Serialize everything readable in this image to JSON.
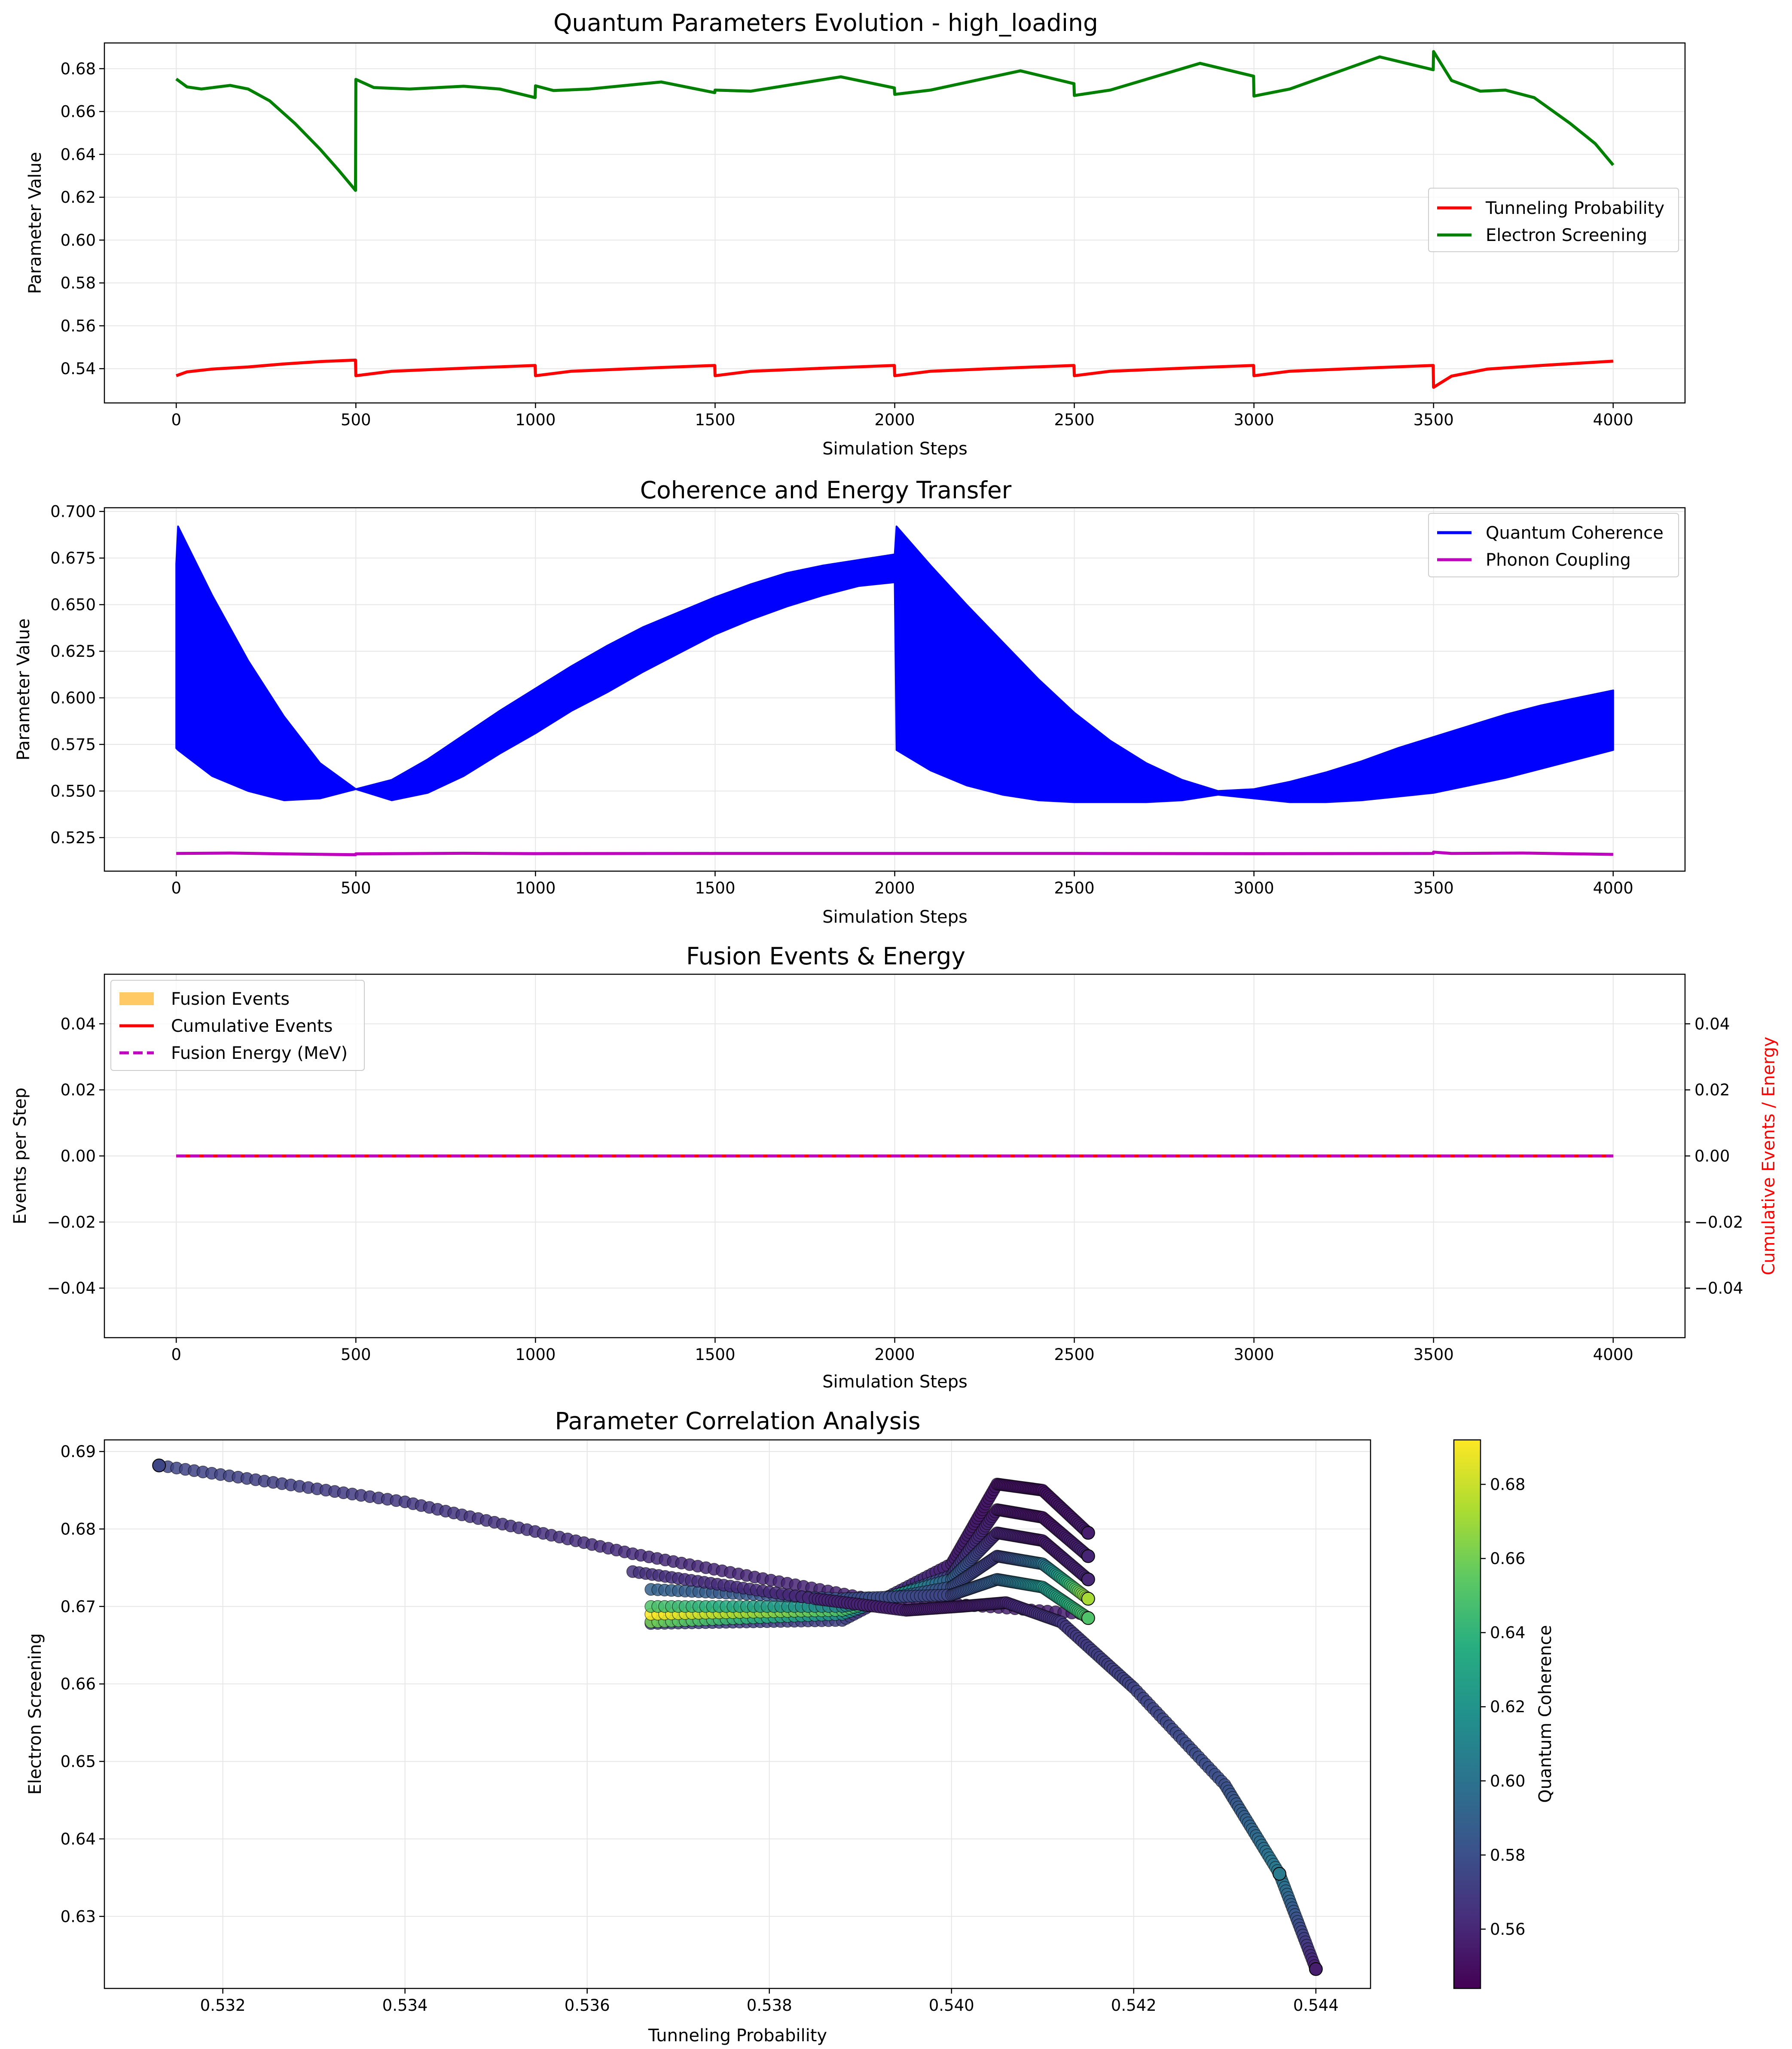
{
  "chart_data": [
    {
      "type": "line",
      "title": "Quantum Parameters Evolution - high_loading",
      "xlabel": "Simulation Steps",
      "ylabel": "Parameter Value",
      "xlim": [
        -200,
        4200
      ],
      "ylim": [
        0.524,
        0.692
      ],
      "xticks": [
        0,
        500,
        1000,
        1500,
        2000,
        2500,
        3000,
        3500,
        4000
      ],
      "yticks": [
        0.54,
        0.56,
        0.58,
        0.6,
        0.62,
        0.64,
        0.66,
        0.68
      ],
      "ytick_labels": [
        "0.54",
        "0.56",
        "0.58",
        "0.60",
        "0.62",
        "0.64",
        "0.66",
        "0.68"
      ],
      "grid": true,
      "legend_position": "center-right",
      "series": [
        {
          "name": "Tunneling Probability",
          "color": "#ff0000",
          "x": [
            0,
            30,
            100,
            200,
            300,
            400,
            499,
            500,
            600,
            800,
            999,
            1000,
            1100,
            1300,
            1499,
            1500,
            1600,
            1800,
            1999,
            2000,
            2100,
            2300,
            2499,
            2500,
            2600,
            2800,
            2999,
            3000,
            3100,
            3300,
            3499,
            3500,
            3550,
            3650,
            3800,
            4000
          ],
          "y": [
            0.5367,
            0.5385,
            0.5398,
            0.5408,
            0.5422,
            0.5433,
            0.544,
            0.5367,
            0.5388,
            0.5402,
            0.5415,
            0.5367,
            0.5388,
            0.5402,
            0.5415,
            0.5367,
            0.5388,
            0.5402,
            0.5415,
            0.5367,
            0.5388,
            0.5402,
            0.5415,
            0.5367,
            0.5388,
            0.5402,
            0.5415,
            0.5367,
            0.5388,
            0.5402,
            0.5415,
            0.5313,
            0.5365,
            0.5398,
            0.5415,
            0.5435
          ]
        },
        {
          "name": "Electron Screening",
          "color": "#008000",
          "x": [
            0,
            30,
            70,
            150,
            200,
            260,
            330,
            400,
            450,
            499,
            500,
            550,
            650,
            800,
            900,
            999,
            1000,
            1050,
            1150,
            1350,
            1499,
            1500,
            1600,
            1850,
            1999,
            2000,
            2100,
            2350,
            2499,
            2500,
            2600,
            2850,
            2999,
            3000,
            3100,
            3350,
            3499,
            3500,
            3550,
            3630,
            3700,
            3780,
            3880,
            3950,
            4000
          ],
          "y": [
            0.6752,
            0.6715,
            0.6705,
            0.6722,
            0.6705,
            0.665,
            0.6545,
            0.6425,
            0.633,
            0.6232,
            0.675,
            0.6712,
            0.6705,
            0.6718,
            0.6705,
            0.6665,
            0.672,
            0.6698,
            0.6705,
            0.6738,
            0.6688,
            0.67,
            0.6695,
            0.6762,
            0.671,
            0.668,
            0.67,
            0.679,
            0.673,
            0.6675,
            0.67,
            0.6825,
            0.6765,
            0.6672,
            0.6705,
            0.6855,
            0.6795,
            0.688,
            0.6745,
            0.6695,
            0.67,
            0.6665,
            0.6545,
            0.645,
            0.635
          ]
        }
      ]
    },
    {
      "type": "area",
      "title": "Coherence and Energy Transfer",
      "xlabel": "Simulation Steps",
      "ylabel": "Parameter Value",
      "xlim": [
        -200,
        4200
      ],
      "ylim": [
        0.507,
        0.702
      ],
      "xticks": [
        0,
        500,
        1000,
        1500,
        2000,
        2500,
        3000,
        3500,
        4000
      ],
      "yticks": [
        0.525,
        0.55,
        0.575,
        0.6,
        0.625,
        0.65,
        0.675,
        0.7
      ],
      "ytick_labels": [
        "0.525",
        "0.550",
        "0.575",
        "0.600",
        "0.625",
        "0.650",
        "0.675",
        "0.700"
      ],
      "grid": true,
      "legend_position": "top-right",
      "series": [
        {
          "name": "Quantum Coherence",
          "color": "#0000ff",
          "x": [
            0,
            5,
            100,
            200,
            300,
            400,
            500,
            600,
            700,
            800,
            900,
            1000,
            1100,
            1200,
            1300,
            1400,
            1500,
            1600,
            1700,
            1800,
            1900,
            2000,
            2005,
            2100,
            2200,
            2300,
            2400,
            2500,
            2600,
            2700,
            2800,
            2900,
            3000,
            3100,
            3200,
            3300,
            3400,
            3500,
            3600,
            3700,
            3800,
            3900,
            4000
          ],
          "upper": [
            0.672,
            0.692,
            0.655,
            0.62,
            0.59,
            0.565,
            0.551,
            0.556,
            0.567,
            0.58,
            0.593,
            0.605,
            0.617,
            0.628,
            0.638,
            0.646,
            0.654,
            0.661,
            0.667,
            0.671,
            0.674,
            0.677,
            0.692,
            0.671,
            0.65,
            0.63,
            0.61,
            0.592,
            0.577,
            0.565,
            0.556,
            0.55,
            0.551,
            0.555,
            0.56,
            0.566,
            0.573,
            0.579,
            0.585,
            0.591,
            0.596,
            0.6,
            0.604
          ],
          "lower": [
            0.573,
            0.572,
            0.558,
            0.55,
            0.545,
            0.546,
            0.551,
            0.545,
            0.549,
            0.558,
            0.57,
            0.581,
            0.593,
            0.603,
            0.614,
            0.624,
            0.634,
            0.642,
            0.649,
            0.655,
            0.66,
            0.662,
            0.572,
            0.561,
            0.553,
            0.548,
            0.545,
            0.544,
            0.544,
            0.544,
            0.545,
            0.548,
            0.546,
            0.544,
            0.544,
            0.545,
            0.547,
            0.549,
            0.553,
            0.557,
            0.562,
            0.567,
            0.572
          ]
        },
        {
          "name": "Phonon Coupling",
          "color": "#bf00bf",
          "x": [
            0,
            150,
            300,
            499,
            500,
            800,
            1000,
            1500,
            2000,
            2500,
            3000,
            3499,
            3500,
            3550,
            3750,
            4000
          ],
          "y": [
            0.5165,
            0.5167,
            0.5163,
            0.5158,
            0.5163,
            0.5166,
            0.5164,
            0.5165,
            0.5165,
            0.5165,
            0.5164,
            0.5165,
            0.5172,
            0.5165,
            0.5167,
            0.516
          ]
        }
      ]
    },
    {
      "type": "line",
      "title": "Fusion Events & Energy",
      "xlabel": "Simulation Steps",
      "ylabel": "Events per Step",
      "ylabel_right": "Cumulative Events / Energy",
      "ylabel_right_color": "#ff0000",
      "xlim": [
        -200,
        4200
      ],
      "ylim": [
        -0.055,
        0.055
      ],
      "ylim_right": [
        -0.055,
        0.055
      ],
      "xticks": [
        0,
        500,
        1000,
        1500,
        2000,
        2500,
        3000,
        3500,
        4000
      ],
      "yticks": [
        -0.04,
        -0.02,
        0.0,
        0.02,
        0.04
      ],
      "ytick_labels": [
        "−0.04",
        "−0.02",
        "0.00",
        "0.02",
        "0.04"
      ],
      "grid": true,
      "legend_position": "top-left",
      "series": [
        {
          "name": "Fusion Events",
          "color": "#ffa500",
          "style": "bar",
          "x": [
            0,
            4000
          ],
          "y": [
            0,
            0
          ]
        },
        {
          "name": "Cumulative Events",
          "color": "#ff0000",
          "style": "solid",
          "x": [
            0,
            4000
          ],
          "y": [
            0,
            0
          ]
        },
        {
          "name": "Fusion Energy (MeV)",
          "color": "#bf00bf",
          "style": "dashed",
          "x": [
            0,
            4000
          ],
          "y": [
            0,
            0
          ]
        }
      ]
    },
    {
      "type": "scatter",
      "title": "Parameter Correlation Analysis",
      "xlabel": "Tunneling Probability",
      "ylabel": "Electron Screening",
      "xlim": [
        0.5307,
        0.5446
      ],
      "ylim": [
        0.6207,
        0.6915
      ],
      "xticks": [
        0.532,
        0.534,
        0.536,
        0.538,
        0.54,
        0.542,
        0.544
      ],
      "xtick_labels": [
        "0.532",
        "0.534",
        "0.536",
        "0.538",
        "0.540",
        "0.542",
        "0.544"
      ],
      "yticks": [
        0.63,
        0.64,
        0.65,
        0.66,
        0.67,
        0.68,
        0.69
      ],
      "ytick_labels": [
        "0.63",
        "0.64",
        "0.65",
        "0.66",
        "0.67",
        "0.68",
        "0.69"
      ],
      "grid": true,
      "colorbar": {
        "label": "Quantum Coherence",
        "colormap": "viridis",
        "range": [
          0.544,
          0.692
        ],
        "ticks": [
          0.56,
          0.58,
          0.6,
          0.62,
          0.64,
          0.66,
          0.68
        ],
        "tick_labels": [
          "0.56",
          "0.58",
          "0.60",
          "0.62",
          "0.64",
          "0.66",
          "0.68"
        ]
      },
      "curves": [
        {
          "x": [
            0.5313,
            0.534,
            0.5365,
            0.539,
            0.5415
          ],
          "y": [
            0.6882,
            0.6835,
            0.6768,
            0.6712,
            0.669
          ],
          "c": [
            0.575,
            0.568,
            0.562,
            0.558,
            0.556
          ]
        },
        {
          "x": [
            0.5367,
            0.5388,
            0.54,
            0.5405,
            0.541,
            0.5415
          ],
          "y": [
            0.6678,
            0.6682,
            0.6755,
            0.6858,
            0.685,
            0.6795
          ],
          "c": [
            0.573,
            0.572,
            0.558,
            0.552,
            0.551,
            0.556
          ]
        },
        {
          "x": [
            0.5367,
            0.5388,
            0.54,
            0.5405,
            0.541,
            0.5415
          ],
          "y": [
            0.668,
            0.669,
            0.674,
            0.6825,
            0.6815,
            0.6765
          ],
          "c": [
            0.66,
            0.62,
            0.57,
            0.555,
            0.552,
            0.559
          ]
        },
        {
          "x": [
            0.5367,
            0.5388,
            0.54,
            0.5405,
            0.541,
            0.5415
          ],
          "y": [
            0.669,
            0.6695,
            0.6735,
            0.6795,
            0.6785,
            0.6735
          ],
          "c": [
            0.692,
            0.65,
            0.59,
            0.56,
            0.555,
            0.56
          ]
        },
        {
          "x": [
            0.5367,
            0.5388,
            0.54,
            0.5405,
            0.541,
            0.5415
          ],
          "y": [
            0.67,
            0.67,
            0.6725,
            0.6765,
            0.6755,
            0.671
          ],
          "c": [
            0.65,
            0.61,
            0.58,
            0.57,
            0.6,
            0.672
          ]
        },
        {
          "x": [
            0.5367,
            0.5388,
            0.54,
            0.5405,
            0.541,
            0.5415
          ],
          "y": [
            0.6722,
            0.671,
            0.6715,
            0.6735,
            0.6725,
            0.6685
          ],
          "c": [
            0.59,
            0.58,
            0.575,
            0.59,
            0.62,
            0.65
          ]
        },
        {
          "x": [
            0.5365,
            0.5385,
            0.5395,
            0.5401,
            0.5406,
            0.5412,
            0.542,
            0.543,
            0.5436,
            0.544
          ],
          "y": [
            0.6745,
            0.671,
            0.6695,
            0.67,
            0.6705,
            0.668,
            0.6595,
            0.647,
            0.6355,
            0.6232
          ],
          "c": [
            0.565,
            0.56,
            0.556,
            0.556,
            0.56,
            0.568,
            0.574,
            0.58,
            0.605,
            0.556
          ]
        }
      ],
      "markers": [
        {
          "x": 0.5313,
          "y": 0.6882,
          "c": 0.575
        },
        {
          "x": 0.5415,
          "y": 0.6795,
          "c": 0.556
        },
        {
          "x": 0.5415,
          "y": 0.6765,
          "c": 0.559
        },
        {
          "x": 0.5415,
          "y": 0.6735,
          "c": 0.56
        },
        {
          "x": 0.5415,
          "y": 0.671,
          "c": 0.672
        },
        {
          "x": 0.5415,
          "y": 0.6685,
          "c": 0.65
        },
        {
          "x": 0.5436,
          "y": 0.6355,
          "c": 0.605
        },
        {
          "x": 0.544,
          "y": 0.6232,
          "c": 0.556
        }
      ]
    }
  ]
}
